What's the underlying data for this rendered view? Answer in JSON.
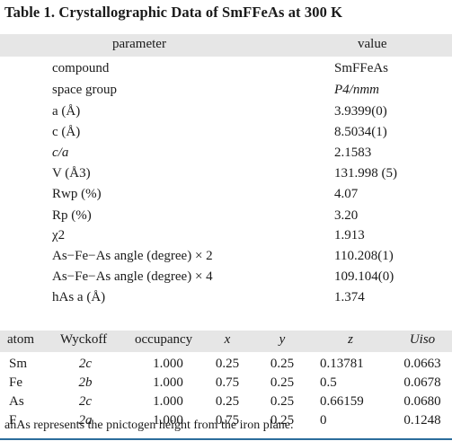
{
  "title": "Table 1. Crystallographic Data of SmFFeAs at 300 K",
  "param_header": {
    "parameter": "parameter",
    "value": "value"
  },
  "params": [
    {
      "label": "compound",
      "value": "SmFFeAs"
    },
    {
      "label": "space group",
      "value": "P4/nmm"
    },
    {
      "label": "a (Å)",
      "value": "3.9399(0)"
    },
    {
      "label": "c (Å)",
      "value": "8.5034(1)"
    },
    {
      "label": "c/a",
      "value": "2.1583"
    },
    {
      "label": "V (Å3)",
      "value": "131.998 (5)"
    },
    {
      "label": "Rwp (%)",
      "value": "4.07"
    },
    {
      "label": "Rp (%)",
      "value": "3.20"
    },
    {
      "label": "χ2",
      "value": "1.913"
    },
    {
      "label": "As−Fe−As angle (degree) × 2",
      "value": "110.208(1)"
    },
    {
      "label": "As−Fe−As angle (degree) × 4",
      "value": "109.104(0)"
    },
    {
      "label": "hAs a (Å)",
      "value": "1.374"
    }
  ],
  "atom_header": [
    "atom",
    "Wyckoff",
    "occupancy",
    "x",
    "y",
    "z",
    "Uiso"
  ],
  "atoms": [
    [
      "Sm",
      "2c",
      "1.000",
      "0.25",
      "0.25",
      "0.13781",
      "0.0663"
    ],
    [
      "Fe",
      "2b",
      "1.000",
      "0.75",
      "0.25",
      "0.5",
      "0.0678"
    ],
    [
      "As",
      "2c",
      "1.000",
      "0.25",
      "0.25",
      "0.66159",
      "0.0680"
    ],
    [
      "F",
      "2a",
      "1.000",
      "0.75",
      "0.25",
      "0",
      "0.1248"
    ]
  ],
  "footnote": "ahAs represents the pnictogen height from the iron plane.",
  "accent_color": "#2b6c9c",
  "header_bg": "#e6e6e6"
}
